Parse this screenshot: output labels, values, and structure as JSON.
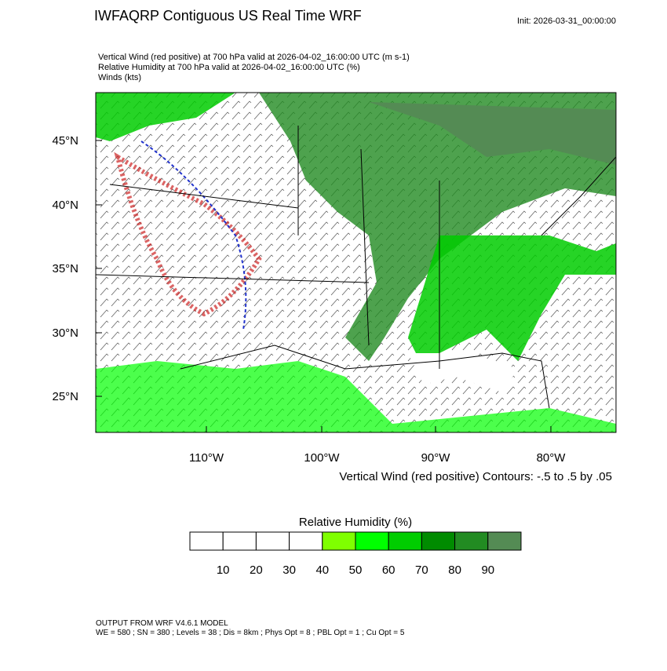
{
  "header": {
    "title": "IWFAQRP Contiguous US Real Time WRF",
    "init": "Init: 2026-03-31_00:00:00"
  },
  "fields": [
    "Vertical Wind (red positive) at 700 hPa valid at 2026-04-02_16:00:00 UTC   (m s-1)",
    "Relative Humidity at 700 hPa valid at 2026-04-02_16:00:00 UTC   (%)",
    "Winds   (kts)"
  ],
  "map": {
    "lat_labels": [
      "45°N",
      "40°N",
      "35°N",
      "30°N",
      "25°N"
    ],
    "lon_labels": [
      "110°W",
      "100°W",
      "90°W",
      "80°W"
    ],
    "contour_note": "Vertical Wind (red positive) Contours: -.5 to .5 by .05"
  },
  "colorbar": {
    "title": "Relative Humidity  (%)",
    "labels": [
      "10",
      "20",
      "30",
      "40",
      "50",
      "60",
      "70",
      "80",
      "90"
    ],
    "colors": [
      "#ffffff",
      "#ffffff",
      "#ffffff",
      "#ffffff",
      "#7fff00",
      "#00ff00",
      "#00cd00",
      "#008b00",
      "#228b22",
      "#548b54"
    ]
  },
  "footer": [
    "OUTPUT FROM WRF V4.6.1 MODEL",
    "WE = 580 ; SN = 380 ; Levels = 38 ; Dis = 8km ; Phys Opt = 8 ; PBL Opt = 1 ; Cu Opt = 5"
  ]
}
